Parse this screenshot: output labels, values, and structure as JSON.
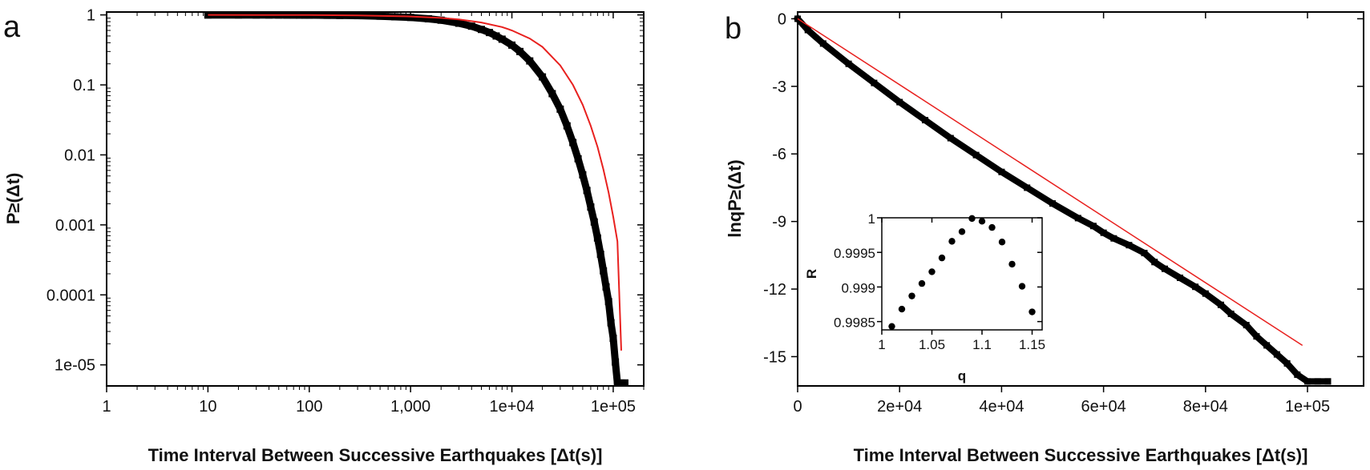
{
  "panels": {
    "a": {
      "letter": "a"
    },
    "b": {
      "letter": "b"
    }
  },
  "chart_data": [
    {
      "id": "a",
      "type": "scatter",
      "xlabel": "Time Interval Between Successive Earthquakes [Δt(s)]",
      "ylabel": "P≥(Δt)",
      "xscale": "log",
      "yscale": "log",
      "xlim": [
        1,
        200000
      ],
      "ylim": [
        5e-06,
        1.1
      ],
      "xticks": [
        1,
        10,
        100,
        1000,
        10000,
        100000
      ],
      "xtick_labels": [
        "1",
        "10",
        "100",
        "1,000",
        "1e+04",
        "1e+05"
      ],
      "yticks": [
        1,
        0.1,
        0.01,
        0.001,
        0.0001,
        1e-05
      ],
      "ytick_labels": [
        "1",
        "0.1",
        "0.01",
        "0.001",
        "0.0001",
        "1e-05"
      ],
      "grid": false,
      "colors": {
        "data": "#000000",
        "fit": "#e8201e"
      },
      "series": [
        {
          "kind": "points",
          "x": [
            10,
            20,
            30,
            40,
            50,
            60,
            70,
            80,
            90,
            100,
            150,
            200,
            300,
            500,
            700,
            1000,
            1500,
            2000,
            3000,
            4000,
            5000,
            6000,
            7000,
            8000,
            10000,
            12000,
            15000,
            20000,
            25000,
            30000,
            35000,
            40000,
            45000,
            50000,
            55000,
            60000,
            65000,
            70000,
            75000,
            80000,
            85000,
            90000,
            95000,
            100000,
            105000,
            110000,
            120000,
            130000
          ],
          "y": [
            0.999,
            0.999,
            0.998,
            0.998,
            0.997,
            0.996,
            0.995,
            0.994,
            0.993,
            0.992,
            0.988,
            0.984,
            0.976,
            0.96,
            0.94,
            0.92,
            0.88,
            0.84,
            0.76,
            0.69,
            0.62,
            0.56,
            0.5,
            0.45,
            0.37,
            0.3,
            0.22,
            0.13,
            0.075,
            0.045,
            0.026,
            0.015,
            0.0088,
            0.0052,
            0.0031,
            0.0018,
            0.0011,
            0.00065,
            0.00038,
            0.00022,
            0.00013,
            8e-05,
            4e-05,
            2.4e-05,
            1.1e-05,
            5.5e-06,
            5.5e-06,
            5.5e-06
          ]
        },
        {
          "kind": "line",
          "x": [
            10,
            30,
            100,
            300,
            1000,
            2000,
            3000,
            5000,
            8000,
            10000,
            15000,
            20000,
            30000,
            40000,
            50000,
            60000,
            70000,
            80000,
            90000,
            100000,
            110000,
            120000
          ],
          "y": [
            1,
            0.999,
            0.995,
            0.985,
            0.95,
            0.905,
            0.86,
            0.78,
            0.67,
            0.6,
            0.46,
            0.35,
            0.19,
            0.1,
            0.052,
            0.026,
            0.013,
            0.0062,
            0.0029,
            0.0013,
            0.00058,
            1.6e-05
          ]
        }
      ]
    },
    {
      "id": "b",
      "type": "scatter",
      "xlabel": "Time Interval Between Successive Earthquakes [Δt(s)]",
      "ylabel": "lnqP≥(Δt)",
      "xlim": [
        0,
        111000
      ],
      "ylim": [
        -16.3,
        0.3
      ],
      "xticks": [
        0,
        20000,
        40000,
        60000,
        80000,
        100000
      ],
      "xtick_labels": [
        "0",
        "2e+04",
        "4e+04",
        "6e+04",
        "8e+04",
        "1e+05"
      ],
      "yticks": [
        0,
        -3,
        -6,
        -9,
        -12,
        -15
      ],
      "ytick_labels": [
        "0",
        "-3",
        "-6",
        "-9",
        "-12",
        "-15"
      ],
      "grid": false,
      "colors": {
        "data": "#000000",
        "fit": "#e8201e"
      },
      "series": [
        {
          "kind": "points",
          "x": [
            0,
            2000,
            5000,
            10000,
            15000,
            20000,
            25000,
            30000,
            35000,
            40000,
            45000,
            50000,
            55000,
            58000,
            60000,
            62000,
            65000,
            68000,
            70000,
            72000,
            75000,
            78000,
            80000,
            83000,
            85000,
            88000,
            90000,
            92000,
            94000,
            96000,
            98000,
            100000,
            102000,
            104000
          ],
          "y": [
            0,
            -0.5,
            -1.1,
            -2.0,
            -2.85,
            -3.7,
            -4.5,
            -5.3,
            -6.05,
            -6.8,
            -7.5,
            -8.2,
            -8.85,
            -9.2,
            -9.5,
            -9.75,
            -10.05,
            -10.4,
            -10.8,
            -11.1,
            -11.5,
            -11.9,
            -12.2,
            -12.7,
            -13.1,
            -13.6,
            -14.1,
            -14.5,
            -14.9,
            -15.3,
            -15.8,
            -16.1,
            -16.1,
            -16.1
          ]
        },
        {
          "kind": "line",
          "x": [
            0,
            99000
          ],
          "y": [
            0,
            -14.5
          ]
        }
      ],
      "inset": {
        "type": "scatter",
        "xlabel": "q",
        "ylabel": "R",
        "xlim": [
          1.0,
          1.16
        ],
        "ylim": [
          0.99838,
          1.0
        ],
        "xticks": [
          1,
          1.05,
          1.1,
          1.15
        ],
        "xtick_labels": [
          "1",
          "1.05",
          "1.1",
          "1.15"
        ],
        "yticks": [
          1,
          0.9995,
          0.999,
          0.9985
        ],
        "ytick_labels": [
          "1",
          "0.9995",
          "0.999",
          "0.9985"
        ],
        "x": [
          1.01,
          1.02,
          1.03,
          1.04,
          1.05,
          1.06,
          1.07,
          1.08,
          1.09,
          1.1,
          1.11,
          1.12,
          1.13,
          1.14,
          1.15
        ],
        "y": [
          0.99843,
          0.99868,
          0.99887,
          0.99905,
          0.99922,
          0.99942,
          0.99966,
          0.9998,
          0.99999,
          0.99995,
          0.99986,
          0.99965,
          0.99933,
          0.99901,
          0.99864
        ]
      }
    }
  ]
}
